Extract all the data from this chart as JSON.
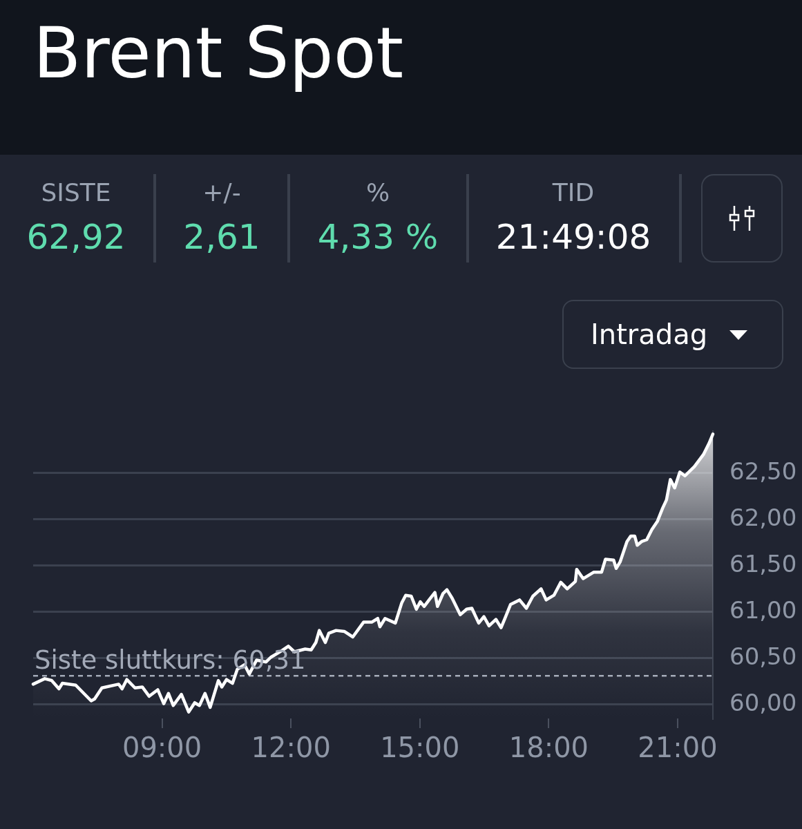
{
  "chart_data": {
    "type": "area",
    "title": "Brent Spot",
    "annotations": [
      "SISTE",
      "62,92",
      "+/-",
      "2,61",
      "%",
      "4,33 %",
      "TID",
      "21:49:08",
      "Intradag"
    ],
    "x": [
      6.0,
      6.27,
      6.43,
      6.6,
      6.68,
      6.99,
      7.35,
      7.43,
      7.6,
      7.99,
      8.07,
      8.18,
      8.37,
      8.54,
      8.7,
      8.9,
      9.04,
      9.15,
      9.26,
      9.45,
      9.62,
      9.76,
      9.87,
      10.0,
      10.12,
      10.31,
      10.39,
      10.5,
      10.64,
      10.75,
      10.92,
      11.03,
      11.2,
      11.42,
      11.53,
      11.78,
      11.94,
      12.08,
      12.33,
      12.47,
      12.58,
      12.66,
      12.8,
      12.88,
      13.05,
      13.24,
      13.44,
      13.69,
      13.88,
      14.02,
      14.07,
      14.19,
      14.43,
      14.58,
      14.67,
      14.8,
      14.92,
      15.01,
      15.1,
      15.23,
      15.35,
      15.41,
      15.54,
      15.63,
      15.75,
      15.94,
      16.09,
      16.21,
      16.37,
      16.49,
      16.61,
      16.77,
      16.89,
      16.98,
      17.11,
      17.32,
      17.48,
      17.63,
      17.82,
      17.94,
      18.12,
      18.28,
      18.43,
      18.62,
      18.65,
      18.8,
      19.05,
      19.23,
      19.32,
      19.51,
      19.57,
      19.66,
      19.82,
      19.91,
      20.0,
      20.06,
      20.16,
      20.28,
      20.4,
      20.53,
      20.65,
      20.74,
      20.83,
      20.93,
      21.05,
      21.17,
      21.39,
      21.6,
      21.73,
      21.82
    ],
    "series": [
      {
        "color": "#ffffff",
        "values": [
          60.22,
          60.28,
          60.26,
          60.17,
          60.23,
          60.21,
          60.04,
          60.06,
          60.18,
          60.22,
          60.17,
          60.27,
          60.18,
          60.19,
          60.09,
          60.16,
          60.01,
          60.12,
          59.99,
          60.11,
          59.92,
          60.02,
          59.99,
          60.12,
          59.97,
          60.26,
          60.19,
          60.27,
          60.23,
          60.38,
          60.43,
          60.33,
          60.48,
          60.46,
          60.51,
          60.58,
          60.63,
          60.57,
          60.6,
          60.59,
          60.67,
          60.8,
          60.67,
          60.77,
          60.8,
          60.79,
          60.73,
          60.89,
          60.89,
          60.93,
          60.84,
          60.93,
          60.88,
          61.1,
          61.18,
          61.17,
          61.03,
          61.11,
          61.06,
          61.14,
          61.21,
          61.06,
          61.2,
          61.24,
          61.15,
          60.97,
          61.03,
          61.04,
          60.88,
          60.95,
          60.85,
          60.92,
          60.83,
          60.93,
          61.08,
          61.13,
          61.04,
          61.17,
          61.25,
          61.13,
          61.18,
          61.32,
          61.25,
          61.33,
          61.46,
          61.36,
          61.43,
          61.43,
          61.57,
          61.56,
          61.47,
          61.54,
          61.76,
          61.82,
          61.82,
          61.72,
          61.76,
          61.78,
          61.89,
          61.98,
          62.12,
          62.21,
          62.43,
          62.34,
          62.51,
          62.47,
          62.57,
          62.7,
          62.82,
          62.92
        ]
      }
    ],
    "xlim": [
      6,
      21.82
    ],
    "xticks": [
      {
        "value": 9,
        "label": "09:00"
      },
      {
        "value": 12,
        "label": "12:00"
      },
      {
        "value": 15,
        "label": "15:00"
      },
      {
        "value": 18,
        "label": "18:00"
      },
      {
        "value": 21,
        "label": "21:00"
      }
    ],
    "ylim": [
      59.85,
      62.95
    ],
    "yticks": [
      {
        "value": 60,
        "label": "60,00"
      },
      {
        "value": 60.5,
        "label": "60,50"
      },
      {
        "value": 61,
        "label": "61,00"
      },
      {
        "value": 61.5,
        "label": "61,50"
      },
      {
        "value": 62,
        "label": "62,00"
      },
      {
        "value": 62.5,
        "label": "62,50"
      }
    ],
    "ref_lines": [
      {
        "axis": "y",
        "value": 60.31,
        "label": "Siste sluttkurs: 60,31",
        "color": "#a3aab8",
        "line_style": "dashed"
      }
    ],
    "grid": "y",
    "marker": "none"
  }
}
